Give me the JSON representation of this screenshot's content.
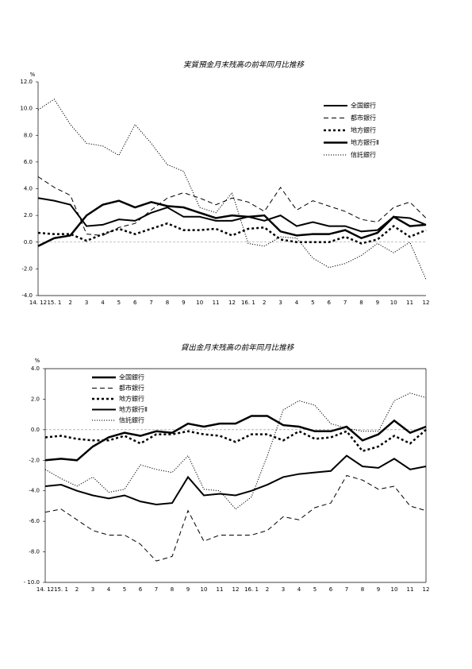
{
  "chart_data": [
    {
      "type": "line",
      "title": "実質預金月末残高の前年同月比推移",
      "ylabel": "%",
      "categories": [
        "14. 12",
        "15. 1",
        "2",
        "3",
        "4",
        "5",
        "6",
        "7",
        "8",
        "9",
        "10",
        "11",
        "12",
        "16. 1",
        "2",
        "3",
        "4",
        "5",
        "6",
        "7",
        "8",
        "9",
        "10",
        "11",
        "12"
      ],
      "ylim": [
        -4,
        12
      ],
      "yticks": [
        {
          "value": -4,
          "label": "-4.0"
        },
        {
          "value": -2,
          "label": "-2.0"
        },
        {
          "value": 0,
          "label": "0.0"
        },
        {
          "value": 2,
          "label": "2.0"
        },
        {
          "value": 4,
          "label": "4.0"
        },
        {
          "value": 6,
          "label": "6.0"
        },
        {
          "value": 8,
          "label": "8.0"
        },
        {
          "value": 10,
          "label": "10.0"
        },
        {
          "value": 12,
          "label": "12.0"
        }
      ],
      "legend": "upper right",
      "zero_line": true,
      "series": [
        {
          "name": "全国銀行",
          "color": "#000000",
          "dash": "solid",
          "width": 2,
          "values": [
            3.3,
            3.1,
            2.8,
            1.2,
            1.3,
            1.7,
            1.6,
            2.2,
            2.6,
            1.9,
            1.9,
            1.6,
            1.6,
            1.9,
            1.6,
            2.0,
            1.2,
            1.5,
            1.2,
            1.2,
            0.8,
            0.9,
            1.9,
            1.8,
            1.3
          ]
        },
        {
          "name": "都市銀行",
          "color": "#000000",
          "dash": "dashed",
          "width": 1,
          "values": [
            4.9,
            4.1,
            3.5,
            0.6,
            0.5,
            1.1,
            1.4,
            2.4,
            3.3,
            3.7,
            3.3,
            2.8,
            3.3,
            3.0,
            2.3,
            4.1,
            2.4,
            3.1,
            2.7,
            2.3,
            1.7,
            1.5,
            2.6,
            3.0,
            1.8
          ]
        },
        {
          "name": "地方銀行",
          "color": "#000000",
          "dash": "dotted",
          "width": 2.5,
          "values": [
            0.7,
            0.6,
            0.6,
            0.1,
            0.6,
            1.0,
            0.6,
            1.0,
            1.4,
            0.9,
            0.9,
            1.0,
            0.5,
            1.0,
            1.1,
            0.2,
            0.0,
            0.0,
            0.0,
            0.4,
            -0.1,
            0.2,
            1.2,
            0.4,
            0.9
          ]
        },
        {
          "name": "地方銀行Ⅱ",
          "color": "#000000",
          "dash": "solid",
          "width": 2.5,
          "values": [
            -0.3,
            0.3,
            0.5,
            2.0,
            2.8,
            3.1,
            2.6,
            3.0,
            2.7,
            2.6,
            2.2,
            1.8,
            2.0,
            1.9,
            2.0,
            0.8,
            0.5,
            0.6,
            0.6,
            0.9,
            0.3,
            0.7,
            1.9,
            1.2,
            1.3
          ]
        },
        {
          "name": "信託銀行",
          "color": "#000000",
          "dash": "fine",
          "width": 1,
          "values": [
            9.9,
            10.7,
            8.8,
            7.4,
            7.2,
            6.5,
            8.8,
            7.4,
            5.8,
            5.3,
            2.6,
            2.2,
            3.7,
            -0.1,
            -0.3,
            0.4,
            0.3,
            -1.2,
            -1.9,
            -1.6,
            -1.0,
            -0.1,
            -0.8,
            0.0,
            -2.8
          ]
        }
      ]
    },
    {
      "type": "line",
      "title": "貸出金月末残高の前年同月比推移",
      "ylabel": "%",
      "categories": [
        "14. 12",
        "15. 1",
        "2",
        "3",
        "4",
        "5",
        "6",
        "7",
        "8",
        "9",
        "10",
        "11",
        "12",
        "16. 1",
        "2",
        "3",
        "4",
        "5",
        "6",
        "7",
        "8",
        "9",
        "10",
        "11",
        "12"
      ],
      "ylim": [
        -10,
        4
      ],
      "yticks": [
        {
          "value": -10,
          "label": "- 10.0"
        },
        {
          "value": -8,
          "label": "-8.0"
        },
        {
          "value": -6,
          "label": "-6.0"
        },
        {
          "value": -4,
          "label": "-4.0"
        },
        {
          "value": -2,
          "label": "-2.0"
        },
        {
          "value": 0,
          "label": "0.0"
        },
        {
          "value": 2,
          "label": "2.0"
        },
        {
          "value": 4,
          "label": "4.0"
        }
      ],
      "legend": "upper left",
      "zero_line": true,
      "series": [
        {
          "name": "全国銀行",
          "color": "#000000",
          "dash": "solid",
          "width": 2.5,
          "values": [
            -2.0,
            -1.9,
            -2.0,
            -1.1,
            -0.5,
            -0.2,
            -0.4,
            -0.1,
            -0.2,
            0.4,
            0.2,
            0.4,
            0.4,
            0.9,
            0.9,
            0.3,
            0.2,
            -0.1,
            -0.1,
            0.2,
            -0.7,
            -0.3,
            0.6,
            -0.2,
            0.2
          ]
        },
        {
          "name": "都市銀行",
          "color": "#000000",
          "dash": "dashed",
          "width": 1,
          "values": [
            -5.4,
            -5.2,
            -5.9,
            -6.6,
            -6.9,
            -6.9,
            -7.5,
            -8.6,
            -8.3,
            -5.3,
            -7.3,
            -6.9,
            -6.9,
            -6.9,
            -6.6,
            -5.7,
            -5.9,
            -5.1,
            -4.8,
            -3.0,
            -3.3,
            -3.9,
            -3.7,
            -5.0,
            -5.3
          ]
        },
        {
          "name": "地方銀行",
          "color": "#000000",
          "dash": "dotted",
          "width": 2.5,
          "values": [
            -0.5,
            -0.4,
            -0.6,
            -0.7,
            -0.7,
            -0.4,
            -0.9,
            -0.3,
            -0.3,
            -0.1,
            -0.3,
            -0.4,
            -0.8,
            -0.3,
            -0.3,
            -0.7,
            -0.1,
            -0.6,
            -0.5,
            -0.1,
            -1.4,
            -1.1,
            -0.4,
            -0.9,
            0.0
          ]
        },
        {
          "name": "地方銀行Ⅱ",
          "color": "#000000",
          "dash": "solid",
          "width": 2,
          "values": [
            -3.7,
            -3.6,
            -4.0,
            -4.3,
            -4.5,
            -4.3,
            -4.7,
            -4.9,
            -4.8,
            -3.1,
            -4.3,
            -4.2,
            -4.3,
            -4.0,
            -3.6,
            -3.1,
            -2.9,
            -2.8,
            -2.7,
            -1.7,
            -2.4,
            -2.5,
            -1.9,
            -2.6,
            -2.4
          ]
        },
        {
          "name": "信託銀行",
          "color": "#000000",
          "dash": "fine",
          "width": 1,
          "values": [
            -2.6,
            -3.2,
            -3.7,
            -3.1,
            -4.1,
            -3.9,
            -2.3,
            -2.6,
            -2.8,
            -1.7,
            -3.9,
            -4.0,
            -5.2,
            -4.4,
            -1.7,
            1.3,
            1.9,
            1.6,
            0.4,
            0.1,
            -0.1,
            -0.1,
            1.9,
            2.4,
            2.1
          ]
        }
      ]
    }
  ]
}
